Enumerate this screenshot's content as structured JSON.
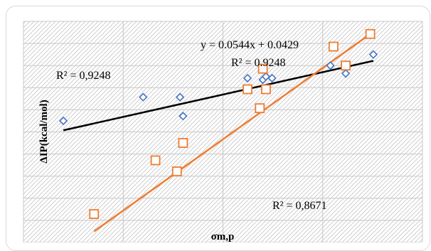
{
  "chart_data": {
    "type": "scatter",
    "xlabel": "σm,p",
    "ylabel": "ΔIP(kcal/mol)",
    "grid": true,
    "x_range": [
      -0.5,
      0.8
    ],
    "y_range": [
      -0.6,
      0.8
    ],
    "series": [
      {
        "marker": "diamond",
        "color": "#4472c4",
        "points": [
          [
            -0.37,
            0.17
          ],
          [
            -0.11,
            0.32
          ],
          [
            0.01,
            0.32
          ],
          [
            0.02,
            0.2
          ],
          [
            0.23,
            0.44
          ],
          [
            0.28,
            0.43
          ],
          [
            0.29,
            0.45
          ],
          [
            0.31,
            0.44
          ],
          [
            0.5,
            0.52
          ],
          [
            0.55,
            0.47
          ],
          [
            0.64,
            0.59
          ]
        ],
        "trendline": {
          "color": "#000000",
          "x": [
            -0.37,
            0.64
          ],
          "y": [
            0.11,
            0.55
          ]
        }
      },
      {
        "marker": "square",
        "color": "#ed7d31",
        "points": [
          [
            -0.27,
            -0.42
          ],
          [
            -0.07,
            -0.08
          ],
          [
            0.0,
            -0.15
          ],
          [
            0.02,
            0.03
          ],
          [
            0.23,
            0.37
          ],
          [
            0.27,
            0.25
          ],
          [
            0.28,
            0.5
          ],
          [
            0.29,
            0.37
          ],
          [
            0.51,
            0.64
          ],
          [
            0.55,
            0.52
          ],
          [
            0.63,
            0.72
          ]
        ],
        "trendline": {
          "color": "#ed7d31",
          "x": [
            -0.27,
            0.63
          ],
          "y": [
            -0.53,
            0.72
          ]
        }
      }
    ],
    "annotations": {
      "equation": "y = 0.0544x + 0.0429",
      "r2_top": "R² = 0.9248",
      "r2_left": "R² = 0,9248",
      "r2_bottom": "R² = 0,8671"
    }
  }
}
